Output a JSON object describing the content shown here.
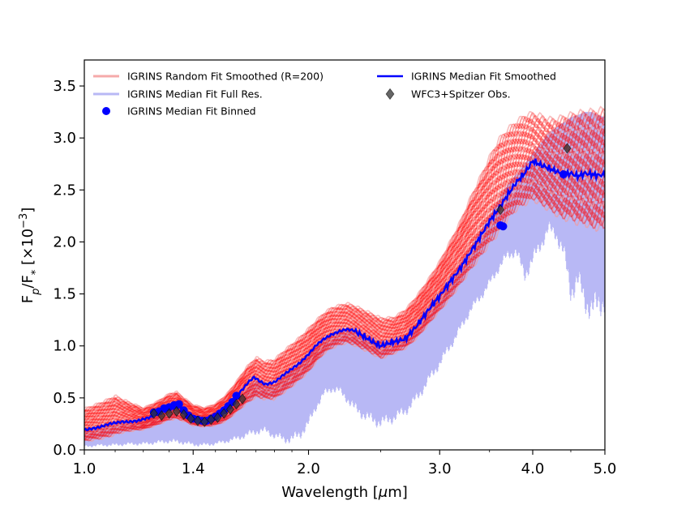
{
  "chart_data": {
    "type": "line",
    "xscale": "log",
    "xlim": [
      1.0,
      5.0
    ],
    "ylim": [
      0.0,
      3.75
    ],
    "xticks": [
      {
        "value": 1.0,
        "label": "1.0"
      },
      {
        "value": 1.4,
        "label": "1.4"
      },
      {
        "value": 2.0,
        "label": "2.0"
      },
      {
        "value": 3.0,
        "label": "3.0"
      },
      {
        "value": 4.0,
        "label": "4.0"
      },
      {
        "value": 5.0,
        "label": "5.0"
      }
    ],
    "yticks": [
      {
        "value": 0.0,
        "label": "0.0"
      },
      {
        "value": 0.5,
        "label": "0.5"
      },
      {
        "value": 1.0,
        "label": "1.0"
      },
      {
        "value": 1.5,
        "label": "1.5"
      },
      {
        "value": 2.0,
        "label": "2.0"
      },
      {
        "value": 2.5,
        "label": "2.5"
      },
      {
        "value": 3.0,
        "label": "3.0"
      },
      {
        "value": 3.5,
        "label": "3.5"
      }
    ],
    "xlabel": {
      "prefix": "Wavelength [",
      "mu": "μ",
      "suffix": "m]"
    },
    "ylabel": {
      "base": "F",
      "sub1": "p",
      "mid": "/F",
      "sub2": "*",
      "bracket": " [×10",
      "exp": "−3",
      "close": "]"
    },
    "colors": {
      "random": "#ff0000",
      "fullres": "#b8b8f5",
      "median": "#0000ff",
      "binned": "#0000ff",
      "obs": "#333333"
    },
    "series": [
      {
        "name": "IGRINS Median Fit Smoothed",
        "x": [
          1.0,
          1.05,
          1.08,
          1.12,
          1.15,
          1.18,
          1.22,
          1.26,
          1.29,
          1.31,
          1.33,
          1.35,
          1.37,
          1.4,
          1.43,
          1.46,
          1.49,
          1.52,
          1.55,
          1.58,
          1.6,
          1.63,
          1.66,
          1.69,
          1.72,
          1.75,
          1.8,
          1.85,
          1.9,
          1.95,
          2.0,
          2.05,
          2.1,
          2.15,
          2.2,
          2.25,
          2.3,
          2.35,
          2.4,
          2.45,
          2.5,
          2.55,
          2.6,
          2.65,
          2.7,
          2.8,
          2.9,
          3.0,
          3.1,
          3.2,
          3.3,
          3.4,
          3.5,
          3.6,
          3.7,
          3.8,
          3.9,
          3.95,
          4.0,
          4.1,
          4.2,
          4.3,
          4.4,
          4.5,
          4.6,
          4.7,
          4.8,
          4.9,
          5.0
        ],
        "values": [
          0.19,
          0.22,
          0.25,
          0.27,
          0.27,
          0.28,
          0.31,
          0.35,
          0.38,
          0.4,
          0.41,
          0.4,
          0.33,
          0.29,
          0.28,
          0.29,
          0.31,
          0.35,
          0.4,
          0.46,
          0.52,
          0.58,
          0.65,
          0.7,
          0.66,
          0.63,
          0.65,
          0.72,
          0.78,
          0.84,
          0.92,
          1.01,
          1.07,
          1.11,
          1.14,
          1.16,
          1.15,
          1.11,
          1.07,
          1.03,
          1.0,
          1.02,
          1.04,
          1.05,
          1.07,
          1.2,
          1.35,
          1.48,
          1.62,
          1.75,
          1.9,
          2.05,
          2.2,
          2.32,
          2.45,
          2.57,
          2.66,
          2.72,
          2.78,
          2.74,
          2.71,
          2.68,
          2.65,
          2.66,
          2.63,
          2.66,
          2.65,
          2.64,
          2.65
        ]
      },
      {
        "name": "IGRINS Median Fit Full Res.",
        "x": [
          1.0,
          1.05,
          1.1,
          1.15,
          1.2,
          1.25,
          1.3,
          1.35,
          1.4,
          1.45,
          1.5,
          1.55,
          1.6,
          1.65,
          1.7,
          1.75,
          1.8,
          1.85,
          1.9,
          1.95,
          2.0,
          2.05,
          2.1,
          2.15,
          2.2,
          2.25,
          2.3,
          2.4,
          2.5,
          2.6,
          2.7,
          2.8,
          2.9,
          3.0,
          3.1,
          3.2,
          3.3,
          3.4,
          3.5,
          3.6,
          3.7,
          3.8,
          3.9,
          4.0,
          4.1,
          4.2,
          4.3,
          4.4,
          4.5,
          4.6,
          4.7,
          4.8,
          4.9,
          5.0
        ],
        "low": [
          0.02,
          0.03,
          0.03,
          0.04,
          0.04,
          0.05,
          0.06,
          0.05,
          0.03,
          0.03,
          0.04,
          0.06,
          0.08,
          0.11,
          0.14,
          0.15,
          0.1,
          0.06,
          0.05,
          0.1,
          0.2,
          0.38,
          0.5,
          0.55,
          0.52,
          0.45,
          0.35,
          0.25,
          0.2,
          0.25,
          0.32,
          0.45,
          0.62,
          0.78,
          0.95,
          1.12,
          1.3,
          1.42,
          1.55,
          1.7,
          1.82,
          1.85,
          1.6,
          1.75,
          1.9,
          2.05,
          2.0,
          1.8,
          1.4,
          1.5,
          1.3,
          1.2,
          1.25,
          1.3
        ],
        "high": [
          0.2,
          0.23,
          0.27,
          0.28,
          0.3,
          0.34,
          0.4,
          0.4,
          0.32,
          0.3,
          0.32,
          0.38,
          0.48,
          0.58,
          0.68,
          0.65,
          0.62,
          0.7,
          0.78,
          0.85,
          0.94,
          1.02,
          1.08,
          1.12,
          1.15,
          1.16,
          1.15,
          1.1,
          1.05,
          1.05,
          1.1,
          1.22,
          1.38,
          1.52,
          1.65,
          1.8,
          1.95,
          2.1,
          2.25,
          2.4,
          2.55,
          2.65,
          2.75,
          2.85,
          2.95,
          3.05,
          3.1,
          3.15,
          3.2,
          3.22,
          3.25,
          3.25,
          3.22,
          3.2
        ]
      },
      {
        "name": "IGRINS Random Fit Smoothed (R=200)",
        "x": [
          1.0,
          1.05,
          1.08,
          1.1,
          1.12,
          1.15,
          1.2,
          1.25,
          1.3,
          1.33,
          1.36,
          1.4,
          1.45,
          1.5,
          1.55,
          1.6,
          1.65,
          1.7,
          1.75,
          1.8,
          1.85,
          1.9,
          1.95,
          2.0,
          2.05,
          2.1,
          2.15,
          2.2,
          2.25,
          2.3,
          2.4,
          2.5,
          2.6,
          2.7,
          2.8,
          2.9,
          3.0,
          3.1,
          3.2,
          3.3,
          3.4,
          3.5,
          3.6,
          3.7,
          3.8,
          3.9,
          4.0,
          4.1,
          4.2,
          4.3,
          4.4,
          4.5,
          4.6,
          4.7,
          4.8,
          4.9,
          5.0
        ],
        "low": [
          0.06,
          0.08,
          0.1,
          0.12,
          0.14,
          0.16,
          0.18,
          0.22,
          0.27,
          0.28,
          0.26,
          0.22,
          0.21,
          0.22,
          0.26,
          0.34,
          0.42,
          0.48,
          0.46,
          0.46,
          0.52,
          0.58,
          0.65,
          0.72,
          0.82,
          0.9,
          0.95,
          0.98,
          1.0,
          0.98,
          0.92,
          0.85,
          0.9,
          0.95,
          1.05,
          1.18,
          1.3,
          1.42,
          1.55,
          1.68,
          1.8,
          1.92,
          2.02,
          2.15,
          2.25,
          2.3,
          2.35,
          2.3,
          2.25,
          2.2,
          2.15,
          2.15,
          2.1,
          2.1,
          2.05,
          2.05,
          2.05
        ],
        "high": [
          0.42,
          0.48,
          0.52,
          0.55,
          0.52,
          0.48,
          0.42,
          0.48,
          0.56,
          0.58,
          0.52,
          0.45,
          0.42,
          0.46,
          0.55,
          0.68,
          0.82,
          0.92,
          0.88,
          0.9,
          0.98,
          1.05,
          1.12,
          1.2,
          1.28,
          1.35,
          1.4,
          1.42,
          1.44,
          1.42,
          1.36,
          1.3,
          1.3,
          1.38,
          1.52,
          1.68,
          1.85,
          2.05,
          2.25,
          2.48,
          2.68,
          2.88,
          3.05,
          3.15,
          3.22,
          3.28,
          3.3,
          3.28,
          3.25,
          3.25,
          3.28,
          3.3,
          3.32,
          3.33,
          3.34,
          3.35,
          3.36
        ]
      },
      {
        "name": "IGRINS Median Fit Binned",
        "x": [
          1.24,
          1.26,
          1.28,
          1.3,
          1.32,
          1.34,
          1.36,
          1.38,
          1.4,
          1.42,
          1.44,
          1.46,
          1.48,
          1.5,
          1.52,
          1.54,
          1.56,
          1.58,
          1.6,
          3.62,
          3.65,
          4.4
        ],
        "values": [
          0.36,
          0.37,
          0.4,
          0.41,
          0.43,
          0.44,
          0.38,
          0.33,
          0.3,
          0.29,
          0.28,
          0.28,
          0.3,
          0.32,
          0.35,
          0.38,
          0.42,
          0.46,
          0.52,
          2.16,
          2.15,
          2.65
        ]
      },
      {
        "name": "WFC3+Spitzer Obs.",
        "x": [
          1.24,
          1.27,
          1.3,
          1.33,
          1.36,
          1.39,
          1.42,
          1.45,
          1.48,
          1.51,
          1.54,
          1.57,
          1.6,
          1.63,
          3.62,
          4.45
        ],
        "values": [
          0.35,
          0.33,
          0.35,
          0.37,
          0.34,
          0.3,
          0.28,
          0.27,
          0.29,
          0.31,
          0.35,
          0.39,
          0.44,
          0.49,
          2.31,
          2.9
        ]
      }
    ],
    "legend": {
      "placement": "top",
      "entries": [
        {
          "label": "IGRINS Random Fit Smoothed (R=200)",
          "marker": "line",
          "color": "#f5aaaa"
        },
        {
          "label": "IGRINS Median Fit Smoothed",
          "marker": "line",
          "color": "#0000ff"
        },
        {
          "label": "IGRINS Median Fit Full Res.",
          "marker": "line",
          "color": "#b8b8f5"
        },
        {
          "label": "WFC3+Spitzer Obs.",
          "marker": "diamond",
          "color": "#333333"
        },
        {
          "label": "IGRINS Median Fit Binned",
          "marker": "circle",
          "color": "#0000ff"
        }
      ]
    }
  }
}
